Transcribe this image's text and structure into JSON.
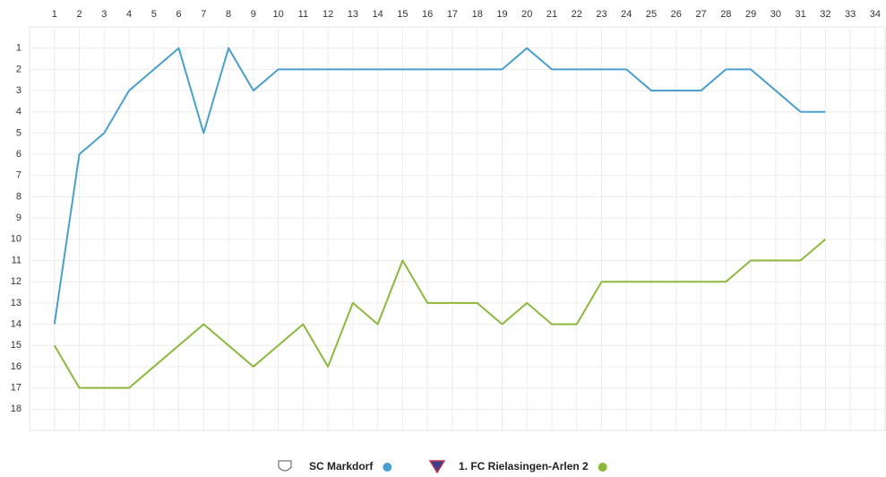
{
  "chart_data": {
    "type": "line",
    "x": [
      1,
      2,
      3,
      4,
      5,
      6,
      7,
      8,
      9,
      10,
      11,
      12,
      13,
      14,
      15,
      16,
      17,
      18,
      19,
      20,
      21,
      22,
      23,
      24,
      25,
      26,
      27,
      28,
      29,
      30,
      31,
      32,
      33,
      34
    ],
    "xlim": [
      0,
      34.4
    ],
    "xticks": [
      1,
      2,
      3,
      4,
      5,
      6,
      7,
      8,
      9,
      10,
      11,
      12,
      13,
      14,
      15,
      16,
      17,
      18,
      19,
      20,
      21,
      22,
      23,
      24,
      25,
      26,
      27,
      28,
      29,
      30,
      31,
      32,
      33,
      34
    ],
    "ylim": [
      19,
      0
    ],
    "yticks": [
      1,
      2,
      3,
      4,
      5,
      6,
      7,
      8,
      9,
      10,
      11,
      12,
      13,
      14,
      15,
      16,
      17,
      18
    ],
    "grid": true,
    "legend": "bottom",
    "series": [
      {
        "name": "SC Markdorf",
        "color": "#4a9fcc",
        "values": [
          14,
          6,
          5,
          3,
          2,
          1,
          5,
          1,
          3,
          2,
          2,
          2,
          2,
          2,
          2,
          2,
          2,
          2,
          2,
          1,
          2,
          2,
          2,
          2,
          3,
          3,
          3,
          2,
          2,
          3,
          4,
          4,
          null,
          null
        ]
      },
      {
        "name": "1. FC Rielasingen-Arlen 2",
        "color": "#8cb83c",
        "values": [
          15,
          17,
          17,
          17,
          16,
          15,
          14,
          15,
          16,
          15,
          14,
          16,
          13,
          14,
          11,
          13,
          13,
          13,
          14,
          13,
          14,
          14,
          12,
          12,
          12,
          12,
          12,
          12,
          11,
          11,
          11,
          10,
          null,
          null
        ]
      }
    ]
  }
}
